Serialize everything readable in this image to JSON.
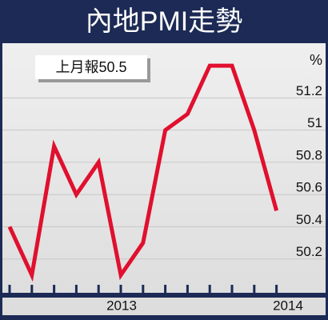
{
  "chart_data": {
    "type": "line",
    "title": "內地PMI走勢",
    "annotation": "上月報50.5",
    "y_unit": "%",
    "categories": [
      null,
      null,
      null,
      null,
      null,
      null,
      null,
      null,
      null,
      null,
      null,
      null,
      null
    ],
    "x_group_labels": [
      "2013",
      "2014"
    ],
    "series": [
      {
        "color": "#e0102e",
        "values": [
          50.4,
          50.1,
          50.9,
          50.6,
          50.8,
          50.1,
          50.3,
          51.0,
          51.1,
          51.4,
          51.4,
          51.0,
          50.5
        ]
      }
    ],
    "ylim": [
      50.0,
      51.5
    ],
    "yticks": [
      50.2,
      50.4,
      50.6,
      50.8,
      51.0,
      51.2
    ],
    "grid": true
  }
}
